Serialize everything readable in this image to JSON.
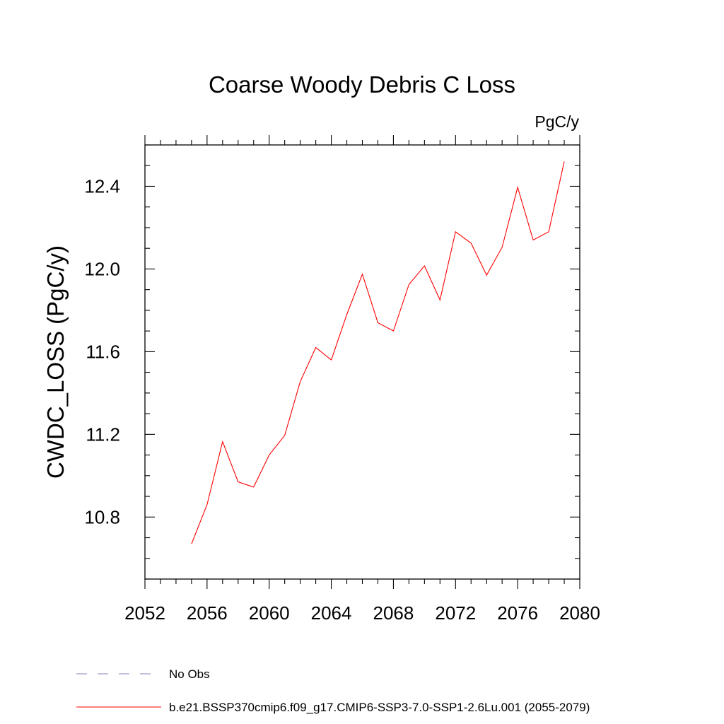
{
  "chart_data": {
    "type": "line",
    "title": "Coarse Woody Debris C Loss",
    "units": "PgC/y",
    "xlabel": "",
    "ylabel": "CWDC_LOSS  (PgC/y)",
    "xlim": [
      2052,
      2080
    ],
    "ylim": [
      10.5,
      12.6
    ],
    "x_ticks": [
      "2052",
      "2056",
      "2060",
      "2064",
      "2068",
      "2072",
      "2076",
      "2080"
    ],
    "y_ticks": [
      "10.8",
      "11.2",
      "11.6",
      "12.0",
      "12.4"
    ],
    "series": [
      {
        "name": "b.e21.BSSP370cmip6.f09_g17.CMIP6-SSP3-7.0-SSP1-2.6Lu.001 (2055-2079)",
        "color": "#ff0000",
        "x": [
          2055,
          2056,
          2057,
          2058,
          2059,
          2060,
          2061,
          2062,
          2063,
          2064,
          2065,
          2066,
          2067,
          2068,
          2069,
          2070,
          2071,
          2072,
          2073,
          2074,
          2075,
          2076,
          2077,
          2078,
          2079
        ],
        "values": [
          10.67,
          10.86,
          11.165,
          10.97,
          10.945,
          11.1,
          11.195,
          11.455,
          11.62,
          11.56,
          11.78,
          11.975,
          11.74,
          11.7,
          11.925,
          12.015,
          11.85,
          12.18,
          12.125,
          11.97,
          12.105,
          12.395,
          12.14,
          12.18,
          12.52
        ]
      }
    ],
    "legend": {
      "placement": "bottom-left",
      "entries": [
        {
          "label": "No Obs",
          "color": "#8080c0",
          "style": "dashed"
        },
        {
          "label": "b.e21.BSSP370cmip6.f09_g17.CMIP6-SSP3-7.0-SSP1-2.6Lu.001 (2055-2079)",
          "color": "#ff0000",
          "style": "solid"
        }
      ]
    }
  }
}
